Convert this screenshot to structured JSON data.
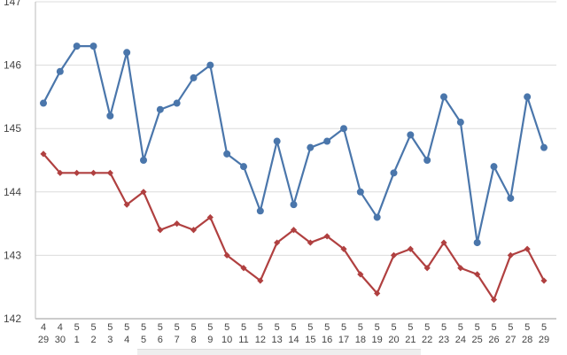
{
  "chart_data": {
    "type": "line",
    "title": "",
    "xlabel": "",
    "ylabel": "",
    "ylim": [
      142,
      147
    ],
    "yticks": [
      "142",
      "143",
      "144",
      "145",
      "146",
      "147"
    ],
    "grid": "horizontal",
    "categories": [
      {
        "month": "4",
        "day": "29"
      },
      {
        "month": "4",
        "day": "30"
      },
      {
        "month": "5",
        "day": "1"
      },
      {
        "month": "5",
        "day": "2"
      },
      {
        "month": "5",
        "day": "3"
      },
      {
        "month": "5",
        "day": "4"
      },
      {
        "month": "5",
        "day": "5"
      },
      {
        "month": "5",
        "day": "6"
      },
      {
        "month": "5",
        "day": "7"
      },
      {
        "month": "5",
        "day": "8"
      },
      {
        "month": "5",
        "day": "9"
      },
      {
        "month": "5",
        "day": "10"
      },
      {
        "month": "5",
        "day": "11"
      },
      {
        "month": "5",
        "day": "12"
      },
      {
        "month": "5",
        "day": "13"
      },
      {
        "month": "5",
        "day": "14"
      },
      {
        "month": "5",
        "day": "15"
      },
      {
        "month": "5",
        "day": "16"
      },
      {
        "month": "5",
        "day": "17"
      },
      {
        "month": "5",
        "day": "18"
      },
      {
        "month": "5",
        "day": "19"
      },
      {
        "month": "5",
        "day": "20"
      },
      {
        "month": "5",
        "day": "21"
      },
      {
        "month": "5",
        "day": "22"
      },
      {
        "month": "5",
        "day": "23"
      },
      {
        "month": "5",
        "day": "24"
      },
      {
        "month": "5",
        "day": "25"
      },
      {
        "month": "5",
        "day": "26"
      },
      {
        "month": "5",
        "day": "27"
      },
      {
        "month": "5",
        "day": "28"
      },
      {
        "month": "5",
        "day": "29"
      }
    ],
    "series": [
      {
        "color": "#4a76ab",
        "marker": "circle",
        "values": [
          145.4,
          145.9,
          146.3,
          146.3,
          145.2,
          146.2,
          144.5,
          145.3,
          145.4,
          145.8,
          146.0,
          144.6,
          144.4,
          143.7,
          144.8,
          143.8,
          144.7,
          144.8,
          145.0,
          144.0,
          143.6,
          144.3,
          144.9,
          144.5,
          145.5,
          145.1,
          143.2,
          144.4,
          143.9,
          145.5,
          144.7
        ]
      },
      {
        "color": "#b04040",
        "marker": "diamond",
        "values": [
          144.6,
          144.3,
          144.3,
          144.3,
          144.3,
          143.8,
          144.0,
          143.4,
          143.5,
          143.4,
          143.6,
          143.0,
          142.8,
          142.6,
          143.2,
          143.4,
          143.2,
          143.3,
          143.1,
          142.7,
          142.4,
          143.0,
          143.1,
          142.8,
          143.2,
          142.8,
          142.7,
          142.3,
          143.0,
          143.1,
          142.6
        ]
      }
    ]
  }
}
